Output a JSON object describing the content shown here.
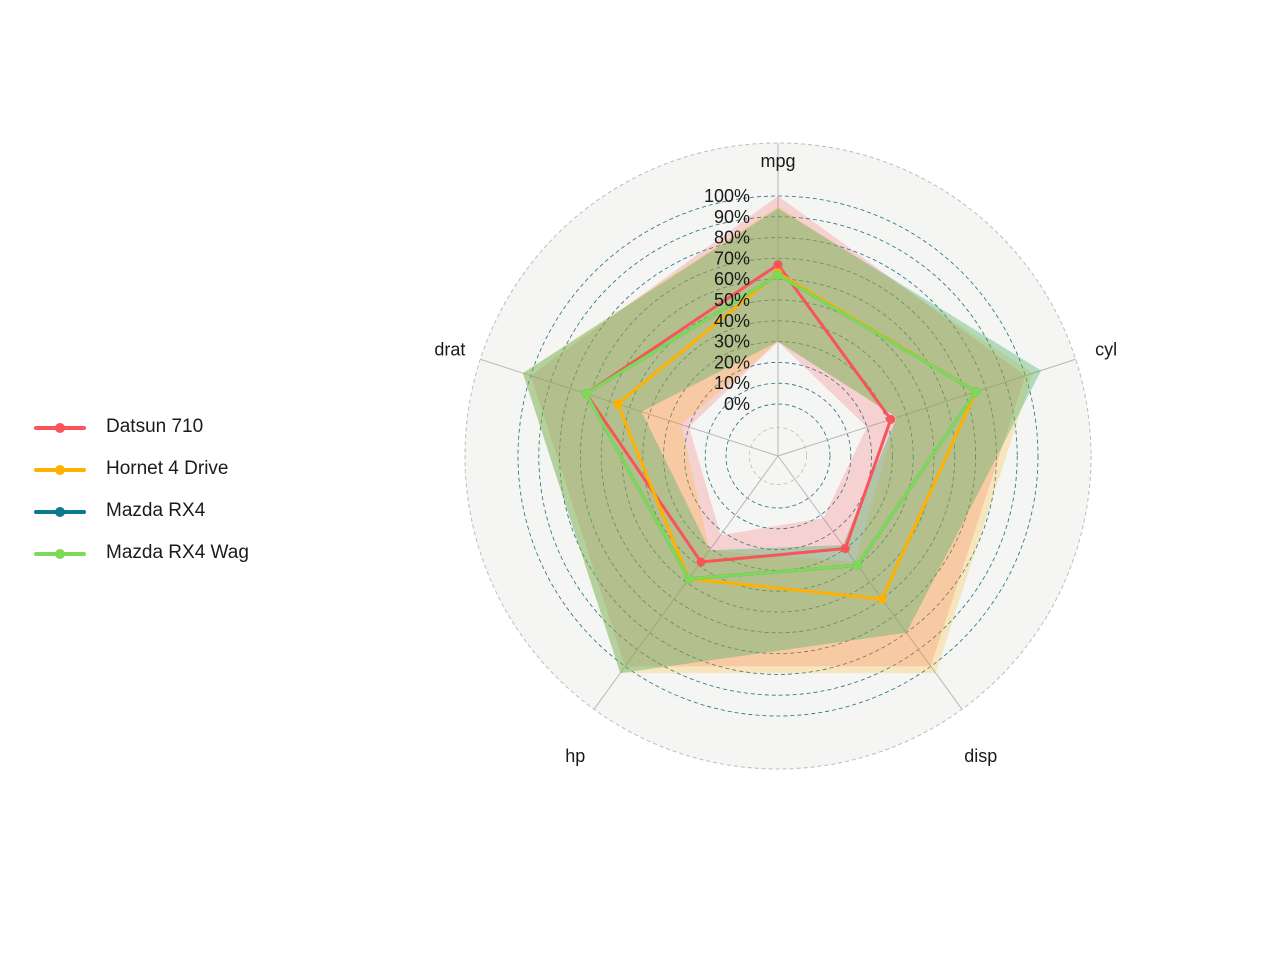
{
  "chart_data": {
    "type": "radar",
    "axes": [
      "mpg",
      "cyl",
      "disp",
      "hp",
      "drat"
    ],
    "tick_labels": [
      "0%",
      "10%",
      "20%",
      "30%",
      "40%",
      "50%",
      "60%",
      "70%",
      "80%",
      "90%",
      "100%"
    ],
    "rlim": [
      0,
      100
    ],
    "grid": true,
    "legend_position": "left",
    "series": [
      {
        "name": "Datsun 710",
        "color": "#F8545A",
        "values": [
          67,
          32,
          30,
          38,
          72
        ],
        "band_lower": [
          30,
          20,
          12,
          22,
          20
        ],
        "band_upper": [
          100,
          100,
          100,
          100,
          100
        ]
      },
      {
        "name": "Hornet 4 Drive",
        "color": "#FFB000",
        "values": [
          63,
          75,
          60,
          48,
          56
        ],
        "band_lower": [
          30,
          35,
          38,
          31,
          24
        ],
        "band_upper": [
          95,
          104,
          104,
          104,
          104
        ]
      },
      {
        "name": "Mazda RX4",
        "color": "#0B7A8A",
        "values": [
          62,
          75,
          40,
          48,
          72
        ],
        "band_lower": [
          30,
          35,
          28,
          31,
          44
        ],
        "band_upper": [
          94,
          108,
          80,
          104,
          104
        ]
      },
      {
        "name": "Mazda RX4 Wag",
        "color": "#7ED957",
        "values": [
          62,
          75,
          40,
          48,
          72
        ],
        "band_lower": [
          30,
          35,
          28,
          31,
          44
        ],
        "band_upper": [
          94,
          108,
          80,
          104,
          104
        ]
      }
    ]
  }
}
